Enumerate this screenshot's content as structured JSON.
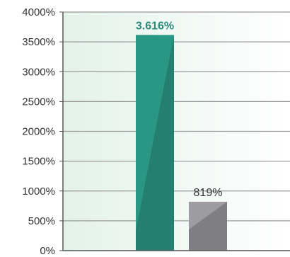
{
  "chart_data": {
    "type": "bar",
    "title": "",
    "xlabel": "",
    "ylabel": "",
    "ylim": [
      0,
      4000
    ],
    "yticks": [
      0,
      500,
      1000,
      1500,
      2000,
      2500,
      3000,
      3500,
      4000
    ],
    "ytick_labels": [
      "0%",
      "500%",
      "1000%",
      "1500%",
      "2000%",
      "2500%",
      "3000%",
      "3500%",
      "4000%"
    ],
    "grid": true,
    "categories": [
      "",
      ""
    ],
    "values": [
      3616,
      819
    ],
    "data_labels": [
      "3.616%",
      "819%"
    ],
    "colors": {
      "bar_1": "#2a9784",
      "bar_1_shade": "#237a6c",
      "bar_2": "#9d9da1",
      "bar_2_shade": "#7a7a7e",
      "label_1": "#2a8a78",
      "label_2": "#333333",
      "gridline": "#9a9a9a",
      "axis": "#555555",
      "background_left": "#e3f2ea",
      "background_right": "#ffffff"
    }
  }
}
